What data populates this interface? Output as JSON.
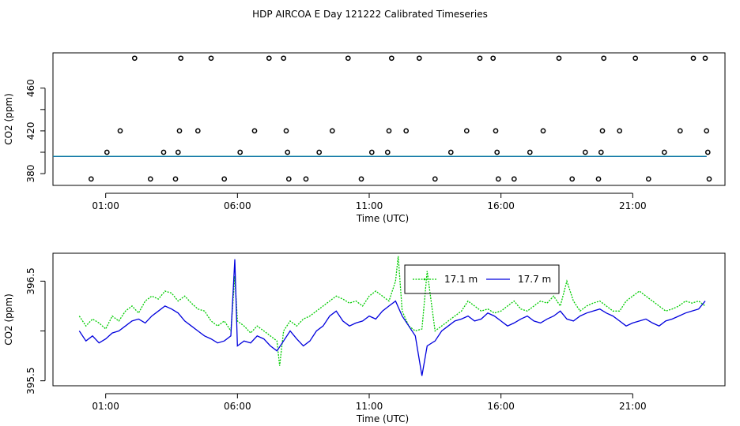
{
  "title": "HDP AIRCOA E  Day 121222  Calibrated Timeseries",
  "colors": {
    "green": "#00cc00",
    "blue": "#0000dd",
    "teal": "#1a9a9a",
    "black": "#000000"
  },
  "chart_data": [
    {
      "type": "scatter",
      "xlabel": "Time (UTC)",
      "ylabel": "CO2 (ppm)",
      "x_unit": "hours UTC",
      "xlim": [
        -1.0,
        24.5
      ],
      "ylim": [
        369,
        493
      ],
      "xticks": [
        1,
        6,
        11,
        16,
        21
      ],
      "xtick_labels": [
        "01:00",
        "06:00",
        "11:00",
        "16:00",
        "21:00"
      ],
      "yticks": [
        380,
        420,
        460
      ],
      "ytick_labels": [
        "380",
        "420",
        "460"
      ],
      "grid": false,
      "points": [
        [
          0.45,
          375
        ],
        [
          1.05,
          400
        ],
        [
          1.55,
          420
        ],
        [
          2.1,
          488
        ],
        [
          2.7,
          375
        ],
        [
          3.2,
          400
        ],
        [
          3.65,
          375
        ],
        [
          3.75,
          400
        ],
        [
          3.8,
          420
        ],
        [
          3.85,
          488
        ],
        [
          4.5,
          420
        ],
        [
          5.0,
          488
        ],
        [
          5.5,
          375
        ],
        [
          6.1,
          400
        ],
        [
          6.65,
          420
        ],
        [
          7.2,
          488
        ],
        [
          7.75,
          488
        ],
        [
          7.85,
          420
        ],
        [
          7.9,
          400
        ],
        [
          7.95,
          375
        ],
        [
          8.6,
          375
        ],
        [
          9.1,
          400
        ],
        [
          9.6,
          420
        ],
        [
          10.2,
          488
        ],
        [
          10.7,
          375
        ],
        [
          11.1,
          400
        ],
        [
          11.7,
          400
        ],
        [
          11.75,
          420
        ],
        [
          11.85,
          488
        ],
        [
          12.4,
          420
        ],
        [
          12.9,
          488
        ],
        [
          13.5,
          375
        ],
        [
          14.1,
          400
        ],
        [
          14.7,
          420
        ],
        [
          15.2,
          488
        ],
        [
          15.7,
          488
        ],
        [
          15.8,
          420
        ],
        [
          15.85,
          400
        ],
        [
          15.9,
          375
        ],
        [
          16.5,
          375
        ],
        [
          17.1,
          400
        ],
        [
          17.6,
          420
        ],
        [
          18.2,
          488
        ],
        [
          18.7,
          375
        ],
        [
          19.2,
          400
        ],
        [
          19.7,
          375
        ],
        [
          19.8,
          400
        ],
        [
          19.85,
          420
        ],
        [
          19.9,
          488
        ],
        [
          20.5,
          420
        ],
        [
          21.1,
          488
        ],
        [
          21.6,
          375
        ],
        [
          22.2,
          400
        ],
        [
          22.8,
          420
        ],
        [
          23.3,
          488
        ],
        [
          23.75,
          488
        ],
        [
          23.8,
          420
        ],
        [
          23.85,
          400
        ],
        [
          23.9,
          375
        ]
      ],
      "series": [
        {
          "name": "17.7 m",
          "color": "#0000dd",
          "constant": 396.0,
          "x_range": [
            -1.0,
            23.8
          ]
        },
        {
          "name": "17.1 m",
          "color": "#1a9a9a",
          "constant": 396.2,
          "x_range": [
            -1.0,
            23.8
          ]
        }
      ]
    },
    {
      "type": "line",
      "xlabel": "Time (UTC)",
      "ylabel": "CO2 (ppm)",
      "x_unit": "hours UTC",
      "xlim": [
        -1.0,
        24.5
      ],
      "ylim": [
        395.45,
        396.78
      ],
      "xticks": [
        1,
        6,
        11,
        16,
        21
      ],
      "xtick_labels": [
        "01:00",
        "06:00",
        "11:00",
        "16:00",
        "21:00"
      ],
      "yticks": [
        395.5,
        396.5
      ],
      "ytick_labels": [
        "395.5",
        "396.5"
      ],
      "grid": false,
      "legend": {
        "placement": "top-center",
        "entries": [
          "17.1 m",
          "17.7 m"
        ]
      },
      "series": [
        {
          "name": "17.1 m",
          "color": "#00cc00",
          "dash": "2,1.5",
          "x": [
            0,
            0.25,
            0.5,
            0.75,
            1,
            1.25,
            1.5,
            1.75,
            2,
            2.25,
            2.5,
            2.75,
            3,
            3.25,
            3.5,
            3.75,
            4,
            4.25,
            4.5,
            4.75,
            5,
            5.25,
            5.5,
            5.75,
            5.9,
            6,
            6.25,
            6.5,
            6.75,
            7,
            7.25,
            7.5,
            7.6,
            7.75,
            8,
            8.25,
            8.5,
            8.75,
            9,
            9.25,
            9.5,
            9.75,
            10,
            10.25,
            10.5,
            10.75,
            11,
            11.25,
            11.5,
            11.75,
            12,
            12.1,
            12.25,
            12.5,
            12.75,
            13,
            13.2,
            13.5,
            13.75,
            14,
            14.25,
            14.5,
            14.75,
            15,
            15.25,
            15.5,
            15.75,
            16,
            16.25,
            16.5,
            16.75,
            17,
            17.25,
            17.5,
            17.75,
            18,
            18.25,
            18.5,
            18.75,
            19,
            19.25,
            19.5,
            19.75,
            20,
            20.25,
            20.5,
            20.75,
            21,
            21.25,
            21.5,
            21.75,
            22,
            22.25,
            22.5,
            22.75,
            23,
            23.25,
            23.5,
            23.75
          ],
          "y": [
            396.15,
            396.05,
            396.12,
            396.08,
            396.02,
            396.15,
            396.1,
            396.2,
            396.25,
            396.18,
            396.3,
            396.35,
            396.32,
            396.4,
            396.38,
            396.3,
            396.35,
            396.28,
            396.22,
            396.2,
            396.1,
            396.05,
            396.1,
            396.0,
            396.55,
            396.1,
            396.05,
            395.98,
            396.05,
            396.0,
            395.95,
            395.9,
            395.65,
            396.0,
            396.1,
            396.05,
            396.12,
            396.15,
            396.2,
            396.25,
            396.3,
            396.35,
            396.32,
            396.28,
            396.3,
            396.25,
            396.35,
            396.4,
            396.35,
            396.3,
            396.5,
            396.75,
            396.2,
            396.05,
            396.0,
            396.02,
            396.6,
            396.0,
            396.05,
            396.1,
            396.15,
            396.2,
            396.3,
            396.25,
            396.2,
            396.22,
            396.18,
            396.2,
            396.25,
            396.3,
            396.22,
            396.2,
            396.25,
            396.3,
            396.28,
            396.35,
            396.25,
            396.5,
            396.3,
            396.2,
            396.25,
            396.28,
            396.3,
            396.25,
            396.2,
            396.2,
            396.3,
            396.35,
            396.4,
            396.35,
            396.3,
            396.25,
            396.2,
            396.22,
            396.25,
            396.3,
            396.28,
            396.3,
            396.25
          ]
        },
        {
          "name": "17.7 m",
          "color": "#0000dd",
          "dash": "",
          "x": [
            0,
            0.25,
            0.5,
            0.75,
            1,
            1.25,
            1.5,
            1.75,
            2,
            2.25,
            2.5,
            2.75,
            3,
            3.25,
            3.5,
            3.75,
            4,
            4.25,
            4.5,
            4.75,
            5,
            5.25,
            5.5,
            5.75,
            5.9,
            6,
            6.25,
            6.5,
            6.75,
            7,
            7.25,
            7.5,
            7.75,
            8,
            8.25,
            8.5,
            8.75,
            9,
            9.25,
            9.5,
            9.75,
            10,
            10.25,
            10.5,
            10.75,
            11,
            11.25,
            11.5,
            11.75,
            12,
            12.25,
            12.5,
            12.75,
            13,
            13.2,
            13.5,
            13.75,
            14,
            14.25,
            14.5,
            14.75,
            15,
            15.25,
            15.5,
            15.75,
            16,
            16.25,
            16.5,
            16.75,
            17,
            17.25,
            17.5,
            17.75,
            18,
            18.25,
            18.5,
            18.75,
            19,
            19.25,
            19.5,
            19.75,
            20,
            20.25,
            20.5,
            20.75,
            21,
            21.25,
            21.5,
            21.75,
            22,
            22.25,
            22.5,
            22.75,
            23,
            23.25,
            23.5,
            23.75
          ],
          "y": [
            396.0,
            395.9,
            395.95,
            395.88,
            395.92,
            395.98,
            396.0,
            396.05,
            396.1,
            396.12,
            396.08,
            396.15,
            396.2,
            396.25,
            396.22,
            396.18,
            396.1,
            396.05,
            396.0,
            395.95,
            395.92,
            395.88,
            395.9,
            395.95,
            396.72,
            395.85,
            395.9,
            395.88,
            395.95,
            395.92,
            395.85,
            395.8,
            395.9,
            396.0,
            395.92,
            395.85,
            395.9,
            396.0,
            396.05,
            396.15,
            396.2,
            396.1,
            396.05,
            396.08,
            396.1,
            396.15,
            396.12,
            396.2,
            396.25,
            396.3,
            396.15,
            396.05,
            395.95,
            395.55,
            395.85,
            395.9,
            396.0,
            396.05,
            396.1,
            396.12,
            396.15,
            396.1,
            396.12,
            396.18,
            396.15,
            396.1,
            396.05,
            396.08,
            396.12,
            396.15,
            396.1,
            396.08,
            396.12,
            396.15,
            396.2,
            396.12,
            396.1,
            396.15,
            396.18,
            396.2,
            396.22,
            396.18,
            396.15,
            396.1,
            396.05,
            396.08,
            396.1,
            396.12,
            396.08,
            396.05,
            396.1,
            396.12,
            396.15,
            396.18,
            396.2,
            396.22,
            396.3
          ]
        }
      ]
    }
  ]
}
